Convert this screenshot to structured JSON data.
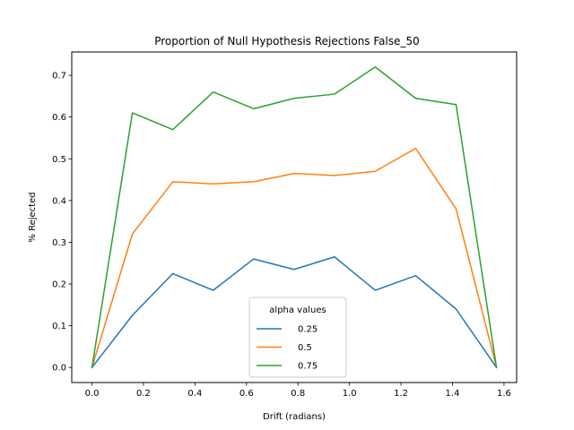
{
  "chart_data": {
    "type": "line",
    "title": "Proportion of Null Hypothesis Rejections False_50",
    "xlabel": "Drift (radians)",
    "ylabel": "% Rejected",
    "xlim": [
      -0.0785,
      1.649
    ],
    "ylim": [
      -0.036,
      0.756
    ],
    "xticks": [
      0.0,
      0.2,
      0.4,
      0.6,
      0.8,
      1.0,
      1.2,
      1.4,
      1.6
    ],
    "xtick_labels": [
      "0.0",
      "0.2",
      "0.4",
      "0.6",
      "0.8",
      "1.0",
      "1.2",
      "1.4",
      "1.6"
    ],
    "yticks": [
      0.0,
      0.1,
      0.2,
      0.3,
      0.4,
      0.5,
      0.6,
      0.7
    ],
    "ytick_labels": [
      "0.0",
      "0.1",
      "0.2",
      "0.3",
      "0.4",
      "0.5",
      "0.6",
      "0.7"
    ],
    "grid": false,
    "legend": {
      "title": "alpha values",
      "placement": "lower center"
    },
    "x": [
      0.0,
      0.157,
      0.314,
      0.471,
      0.628,
      0.785,
      0.942,
      1.1,
      1.257,
      1.414,
      1.571
    ],
    "series": [
      {
        "name": "0.25",
        "color": "#1f77b4",
        "values": [
          0.0,
          0.125,
          0.225,
          0.185,
          0.26,
          0.235,
          0.265,
          0.185,
          0.22,
          0.14,
          0.0
        ]
      },
      {
        "name": "0.5",
        "color": "#ff7f0e",
        "values": [
          0.0,
          0.32,
          0.445,
          0.44,
          0.445,
          0.465,
          0.46,
          0.47,
          0.525,
          0.38,
          0.0
        ]
      },
      {
        "name": "0.75",
        "color": "#2ca02c",
        "values": [
          0.0,
          0.61,
          0.57,
          0.66,
          0.62,
          0.645,
          0.655,
          0.72,
          0.645,
          0.63,
          0.0
        ]
      }
    ]
  }
}
